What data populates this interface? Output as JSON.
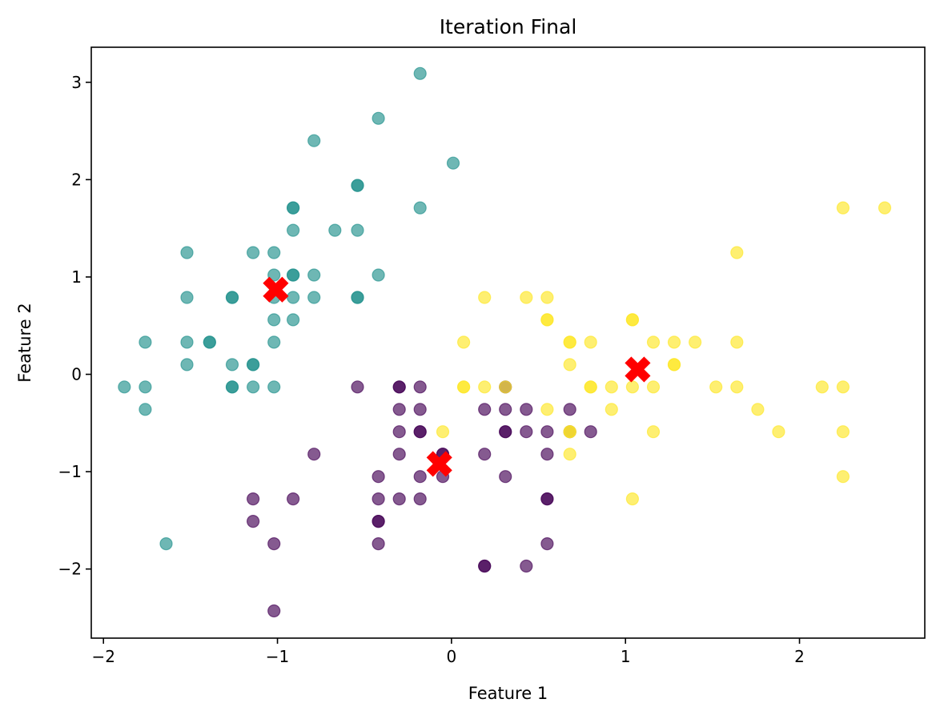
{
  "chart_data": {
    "type": "scatter",
    "title": "Iteration Final",
    "xlabel": "Feature 1",
    "ylabel": "Feature 2",
    "xlim": [
      -2.07,
      2.72
    ],
    "ylim": [
      -2.71,
      3.36
    ],
    "xticks": [
      -2,
      -1,
      0,
      1,
      2
    ],
    "yticks": [
      -2,
      -1,
      0,
      1,
      2,
      3
    ],
    "xtick_labels": [
      "−2",
      "−1",
      "0",
      "1",
      "2"
    ],
    "ytick_labels": [
      "−2",
      "−1",
      "0",
      "1",
      "2",
      "3"
    ],
    "grid": false,
    "legend": false,
    "series": [
      {
        "color": "#21918c",
        "marker": "circle",
        "opacity": 0.65,
        "points": [
          [
            -0.18,
            3.09
          ],
          [
            -0.42,
            2.63
          ],
          [
            -0.79,
            2.4
          ],
          [
            0.01,
            2.17
          ],
          [
            -0.54,
            1.94
          ],
          [
            -0.54,
            1.94
          ],
          [
            -0.91,
            1.71
          ],
          [
            -0.91,
            1.71
          ],
          [
            -0.18,
            1.71
          ],
          [
            -0.91,
            1.48
          ],
          [
            -0.67,
            1.48
          ],
          [
            -0.54,
            1.48
          ],
          [
            -1.52,
            1.25
          ],
          [
            -1.14,
            1.25
          ],
          [
            -1.02,
            1.25
          ],
          [
            -1.02,
            1.02
          ],
          [
            -0.91,
            1.02
          ],
          [
            -0.91,
            1.02
          ],
          [
            -0.79,
            1.02
          ],
          [
            -0.42,
            1.02
          ],
          [
            -1.52,
            0.79
          ],
          [
            -1.26,
            0.79
          ],
          [
            -1.26,
            0.79
          ],
          [
            -1.02,
            0.79
          ],
          [
            -0.91,
            0.79
          ],
          [
            -0.79,
            0.79
          ],
          [
            -0.54,
            0.79
          ],
          [
            -0.54,
            0.79
          ],
          [
            -1.02,
            0.56
          ],
          [
            -0.91,
            0.56
          ],
          [
            -1.76,
            0.33
          ],
          [
            -1.52,
            0.33
          ],
          [
            -1.39,
            0.33
          ],
          [
            -1.39,
            0.33
          ],
          [
            -1.02,
            0.33
          ],
          [
            -1.52,
            0.1
          ],
          [
            -1.26,
            0.1
          ],
          [
            -1.14,
            0.1
          ],
          [
            -1.14,
            0.1
          ],
          [
            -1.88,
            -0.13
          ],
          [
            -1.76,
            -0.13
          ],
          [
            -1.26,
            -0.13
          ],
          [
            -1.26,
            -0.13
          ],
          [
            -1.14,
            -0.13
          ],
          [
            -1.02,
            -0.13
          ],
          [
            -1.76,
            -0.36
          ],
          [
            -1.64,
            -1.74
          ]
        ]
      },
      {
        "color": "#440154",
        "marker": "circle",
        "opacity": 0.65,
        "points": [
          [
            -0.54,
            -0.13
          ],
          [
            -0.3,
            -0.13
          ],
          [
            -0.3,
            -0.13
          ],
          [
            -0.18,
            -0.13
          ],
          [
            0.31,
            -0.13
          ],
          [
            -0.3,
            -0.36
          ],
          [
            -0.18,
            -0.36
          ],
          [
            0.19,
            -0.36
          ],
          [
            0.31,
            -0.36
          ],
          [
            0.43,
            -0.36
          ],
          [
            0.68,
            -0.36
          ],
          [
            -0.3,
            -0.59
          ],
          [
            -0.18,
            -0.59
          ],
          [
            -0.18,
            -0.59
          ],
          [
            0.31,
            -0.59
          ],
          [
            0.31,
            -0.59
          ],
          [
            0.43,
            -0.59
          ],
          [
            0.55,
            -0.59
          ],
          [
            0.68,
            -0.59
          ],
          [
            0.8,
            -0.59
          ],
          [
            -0.79,
            -0.82
          ],
          [
            -0.3,
            -0.82
          ],
          [
            -0.05,
            -0.82
          ],
          [
            -0.05,
            -0.82
          ],
          [
            0.19,
            -0.82
          ],
          [
            0.55,
            -0.82
          ],
          [
            -0.42,
            -1.05
          ],
          [
            -0.18,
            -1.05
          ],
          [
            -0.05,
            -1.05
          ],
          [
            0.31,
            -1.05
          ],
          [
            -1.14,
            -1.28
          ],
          [
            -0.91,
            -1.28
          ],
          [
            -0.42,
            -1.28
          ],
          [
            -0.3,
            -1.28
          ],
          [
            -0.18,
            -1.28
          ],
          [
            0.55,
            -1.28
          ],
          [
            0.55,
            -1.28
          ],
          [
            -1.14,
            -1.51
          ],
          [
            -0.42,
            -1.51
          ],
          [
            -0.42,
            -1.51
          ],
          [
            -1.02,
            -1.74
          ],
          [
            -0.42,
            -1.74
          ],
          [
            0.55,
            -1.74
          ],
          [
            0.19,
            -1.97
          ],
          [
            0.19,
            -1.97
          ],
          [
            0.43,
            -1.97
          ],
          [
            -1.02,
            -2.43
          ]
        ]
      },
      {
        "color": "#fde725",
        "marker": "circle",
        "opacity": 0.65,
        "points": [
          [
            2.25,
            1.71
          ],
          [
            2.49,
            1.71
          ],
          [
            1.64,
            1.25
          ],
          [
            0.19,
            0.79
          ],
          [
            0.43,
            0.79
          ],
          [
            0.55,
            0.79
          ],
          [
            0.55,
            0.56
          ],
          [
            0.55,
            0.56
          ],
          [
            1.04,
            0.56
          ],
          [
            1.04,
            0.56
          ],
          [
            0.07,
            0.33
          ],
          [
            0.68,
            0.33
          ],
          [
            0.68,
            0.33
          ],
          [
            0.8,
            0.33
          ],
          [
            1.16,
            0.33
          ],
          [
            1.28,
            0.33
          ],
          [
            1.4,
            0.33
          ],
          [
            1.64,
            0.33
          ],
          [
            0.68,
            0.1
          ],
          [
            1.28,
            0.1
          ],
          [
            1.28,
            0.1
          ],
          [
            0.07,
            -0.13
          ],
          [
            0.07,
            -0.13
          ],
          [
            0.19,
            -0.13
          ],
          [
            0.31,
            -0.13
          ],
          [
            0.8,
            -0.13
          ],
          [
            0.8,
            -0.13
          ],
          [
            0.92,
            -0.13
          ],
          [
            1.04,
            -0.13
          ],
          [
            1.16,
            -0.13
          ],
          [
            1.52,
            -0.13
          ],
          [
            1.64,
            -0.13
          ],
          [
            2.13,
            -0.13
          ],
          [
            2.25,
            -0.13
          ],
          [
            0.55,
            -0.36
          ],
          [
            0.92,
            -0.36
          ],
          [
            1.76,
            -0.36
          ],
          [
            -0.05,
            -0.59
          ],
          [
            0.68,
            -0.59
          ],
          [
            0.68,
            -0.59
          ],
          [
            1.16,
            -0.59
          ],
          [
            1.88,
            -0.59
          ],
          [
            2.25,
            -0.59
          ],
          [
            0.68,
            -0.82
          ],
          [
            2.25,
            -1.05
          ],
          [
            1.04,
            -1.28
          ]
        ]
      }
    ],
    "centroids": {
      "color": "#ff0000",
      "marker": "x",
      "points": [
        [
          -1.01,
          0.87
        ],
        [
          -0.07,
          -0.92
        ],
        [
          1.07,
          0.05
        ]
      ]
    }
  }
}
